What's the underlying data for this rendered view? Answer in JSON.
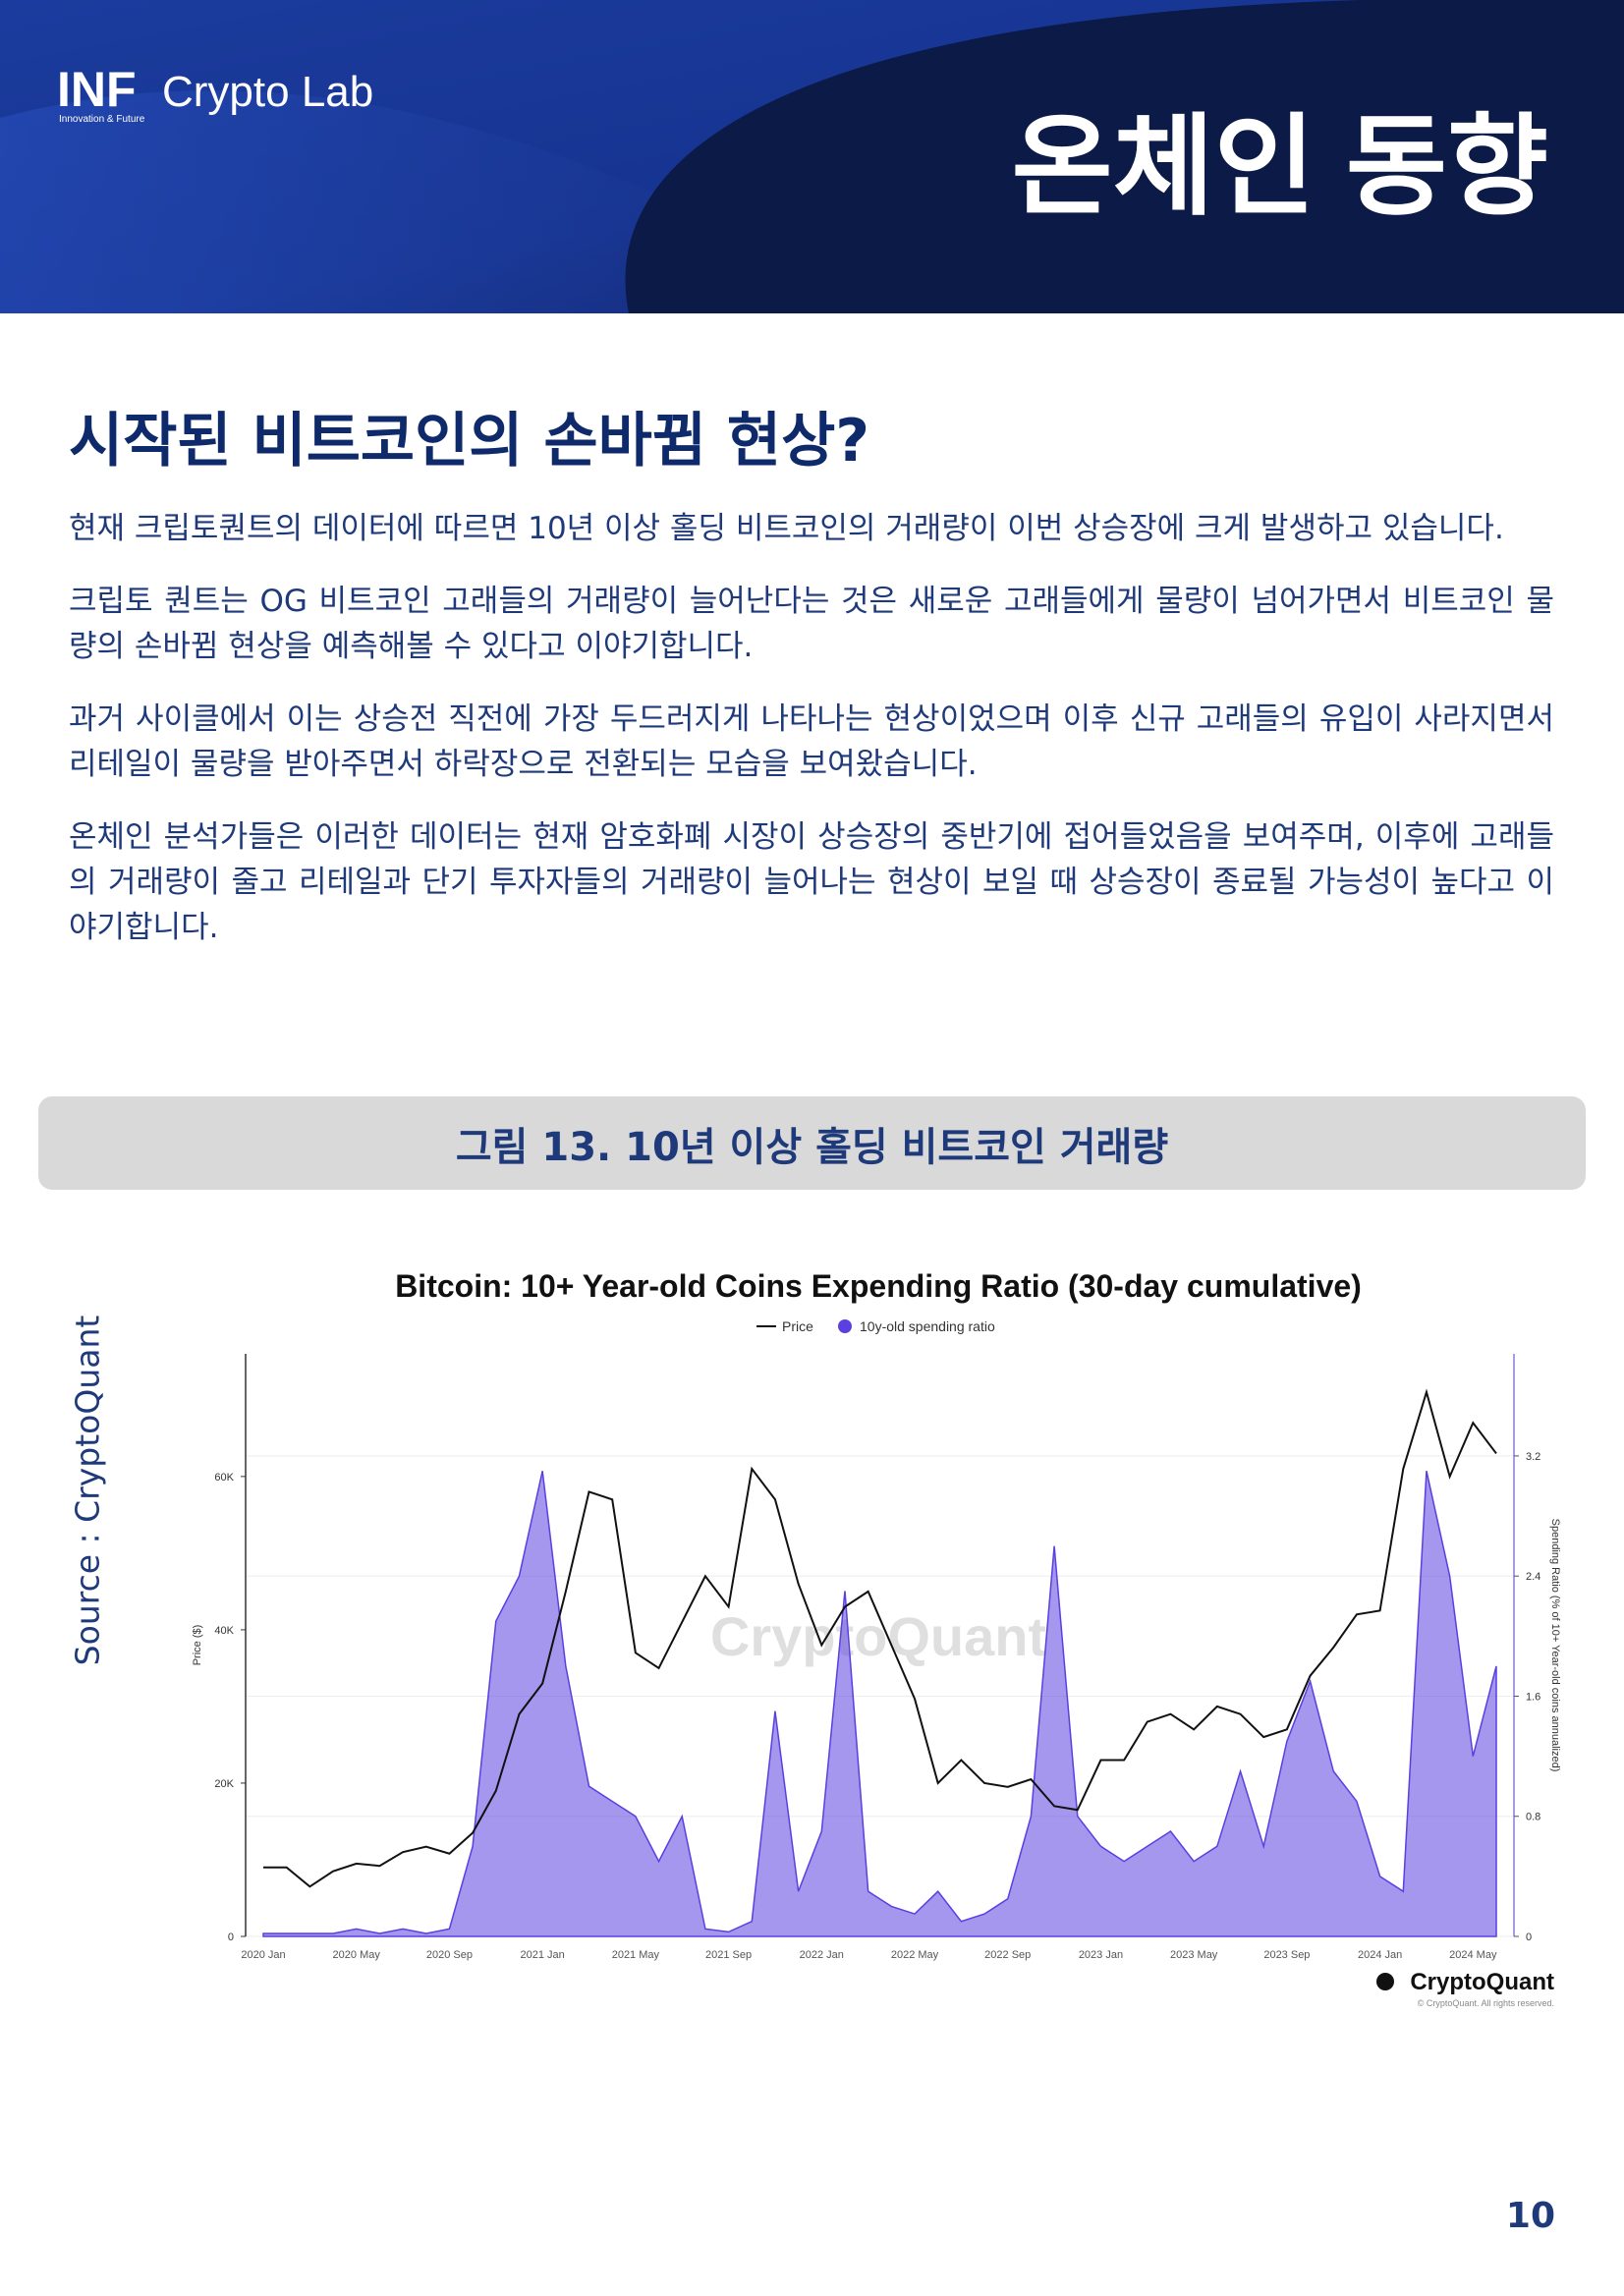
{
  "header": {
    "logo_mark": "INF",
    "logo_text": "Crypto Lab",
    "tagline": "Innovation & Future",
    "title": "온체인 동향"
  },
  "section": {
    "heading": "시작된 비트코인의 손바뀜 현상?",
    "paragraphs": [
      "현재 크립토퀀트의 데이터에 따르면 10년 이상 홀딩 비트코인의 거래량이 이번 상승장에 크게 발생하고 있습니다.",
      "크립토 퀀트는 OG 비트코인 고래들의 거래량이 늘어난다는 것은 새로운 고래들에게 물량이 넘어가면서 비트코인 물량의 손바뀜 현상을 예측해볼 수 있다고 이야기합니다.",
      "과거 사이클에서 이는 상승전 직전에 가장 두드러지게 나타나는 현상이었으며 이후 신규 고래들의 유입이 사라지면서 리테일이 물량을 받아주면서 하락장으로 전환되는 모습을 보여왔습니다.",
      "온체인 분석가들은 이러한 데이터는 현재 암호화폐 시장이 상승장의 중반기에 접어들었음을 보여주며, 이후에 고래들의 거래량이 줄고 리테일과 단기 투자자들의 거래량이 늘어나는 현상이 보일 때 상승장이 종료될 가능성이 높다고 이야기합니다."
    ]
  },
  "figure": {
    "caption": "그림 13. 10년 이상 홀딩 비트코인 거래량",
    "source": "Source : CryptoQuant"
  },
  "chart_data": {
    "type": "line",
    "title": "Bitcoin: 10+ Year-old Coins Expending Ratio (30-day cumulative)",
    "y_label": "Price ($)",
    "y2_label": "Spending Ratio (% of 10+ Year-old coins annualized)",
    "watermark": "CryptoQuant",
    "logo": "CryptoQuant",
    "copyright": "© CryptoQuant. All rights reserved.",
    "categories": [
      "2020 Jan",
      null,
      null,
      null,
      "2020 May",
      null,
      null,
      null,
      "2020 Sep",
      null,
      null,
      null,
      "2021 Jan",
      null,
      null,
      null,
      "2021 May",
      null,
      null,
      null,
      "2021 Sep",
      null,
      null,
      null,
      "2022 Jan",
      null,
      null,
      null,
      "2022 May",
      null,
      null,
      null,
      "2022 Sep",
      null,
      null,
      null,
      "2023 Jan",
      null,
      null,
      null,
      "2023 May",
      null,
      null,
      null,
      "2023 Sep",
      null,
      null,
      null,
      "2024 Jan",
      null,
      null,
      null,
      "2024 May",
      null
    ],
    "series": [
      {
        "name": "Price",
        "color": "#111111",
        "values": [
          9000,
          9000,
          6500,
          8500,
          9500,
          9200,
          11000,
          11700,
          10800,
          13500,
          19000,
          29000,
          33000,
          45000,
          58000,
          57000,
          37000,
          35000,
          41000,
          47000,
          43000,
          61000,
          57000,
          46000,
          38000,
          43000,
          45000,
          38000,
          31000,
          20000,
          23000,
          20000,
          19500,
          20500,
          17000,
          16500,
          23000,
          23000,
          28000,
          29000,
          27000,
          30000,
          29000,
          26000,
          27000,
          34000,
          37700,
          42000,
          42500,
          61000,
          71000,
          60000,
          67000,
          63000
        ]
      },
      {
        "name": "10y-old spending ratio",
        "color": "#5b3fe0",
        "axis": "y2",
        "values": [
          0.02,
          0.02,
          0.02,
          0.02,
          0.05,
          0.02,
          0.05,
          0.02,
          0.05,
          0.6,
          2.1,
          2.4,
          3.1,
          1.8,
          1.0,
          0.9,
          0.8,
          0.5,
          0.8,
          0.05,
          0.03,
          0.1,
          1.5,
          0.3,
          0.7,
          2.3,
          0.3,
          0.2,
          0.15,
          0.3,
          0.1,
          0.15,
          0.25,
          0.8,
          2.6,
          0.8,
          0.6,
          0.5,
          0.6,
          0.7,
          0.5,
          0.6,
          1.1,
          0.6,
          1.3,
          1.7,
          1.1,
          0.9,
          0.4,
          0.3,
          3.1,
          2.4,
          1.2,
          1.8
        ]
      }
    ],
    "ylim": [
      0,
      76000
    ],
    "yticks": [
      0,
      {
        "value": 20000,
        "label": "20K"
      },
      {
        "value": 40000,
        "label": "40K"
      },
      {
        "value": 60000,
        "label": "60K"
      }
    ],
    "y2lim": [
      0,
      3.88
    ],
    "y2ticks": [
      0,
      0.8,
      1.6,
      2.4,
      3.2
    ],
    "grid": true
  },
  "page_number": 10
}
